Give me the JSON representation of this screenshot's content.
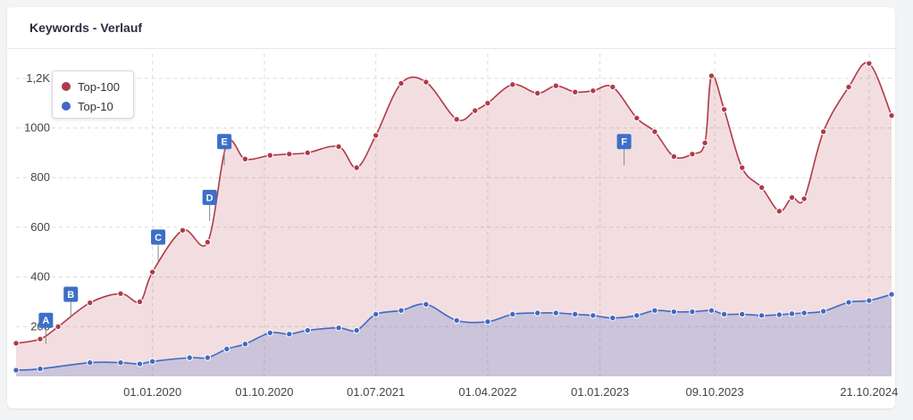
{
  "header": {
    "title": "Keywords - Verlauf"
  },
  "legend": {
    "items": [
      {
        "label": "Top-100",
        "color": "#b03a48"
      },
      {
        "label": "Top-10",
        "color": "#4169c4"
      }
    ]
  },
  "colors": {
    "top100": "#b03a48",
    "top10": "#4169c4",
    "flag": "#3c6fc7"
  },
  "chart_data": {
    "type": "area",
    "title": "Keywords - Verlauf",
    "xlabel": "",
    "ylabel": "",
    "x_ticks": [
      "01.01.2020",
      "01.10.2020",
      "01.07.2021",
      "01.04.2022",
      "01.01.2023",
      "09.10.2023",
      "21.10.2024"
    ],
    "y_ticks": [
      "200",
      "400",
      "600",
      "800",
      "1000",
      "1,2K"
    ],
    "ylim": [
      0,
      1300
    ],
    "grid": true,
    "legend_position": "top-left",
    "x_start": "2019-02-01",
    "x_end": "2024-12-15",
    "series": [
      {
        "name": "Top-100",
        "points": [
          [
            "2019-02-01",
            133
          ],
          [
            "2019-04-01",
            150
          ],
          [
            "2019-05-15",
            200
          ],
          [
            "2019-08-01",
            296
          ],
          [
            "2019-10-15",
            333
          ],
          [
            "2019-12-01",
            300
          ],
          [
            "2020-01-01",
            420
          ],
          [
            "2020-03-15",
            588
          ],
          [
            "2020-05-15",
            540
          ],
          [
            "2020-07-01",
            935
          ],
          [
            "2020-08-15",
            875
          ],
          [
            "2020-10-15",
            890
          ],
          [
            "2020-12-01",
            895
          ],
          [
            "2021-01-15",
            900
          ],
          [
            "2021-04-01",
            925
          ],
          [
            "2021-05-15",
            840
          ],
          [
            "2021-07-01",
            970
          ],
          [
            "2021-09-01",
            1180
          ],
          [
            "2021-11-01",
            1185
          ],
          [
            "2022-01-15",
            1035
          ],
          [
            "2022-03-01",
            1070
          ],
          [
            "2022-04-01",
            1100
          ],
          [
            "2022-06-01",
            1175
          ],
          [
            "2022-08-01",
            1140
          ],
          [
            "2022-09-15",
            1170
          ],
          [
            "2022-11-01",
            1145
          ],
          [
            "2022-12-15",
            1150
          ],
          [
            "2023-02-01",
            1165
          ],
          [
            "2023-04-01",
            1040
          ],
          [
            "2023-05-15",
            985
          ],
          [
            "2023-07-01",
            885
          ],
          [
            "2023-08-15",
            895
          ],
          [
            "2023-09-15",
            940
          ],
          [
            "2023-10-01",
            1210
          ],
          [
            "2023-11-01",
            1075
          ],
          [
            "2023-12-15",
            840
          ],
          [
            "2024-02-01",
            760
          ],
          [
            "2024-03-15",
            665
          ],
          [
            "2024-04-15",
            720
          ],
          [
            "2024-05-15",
            715
          ],
          [
            "2024-07-01",
            985
          ],
          [
            "2024-09-01",
            1165
          ],
          [
            "2024-10-21",
            1260
          ],
          [
            "2024-12-15",
            1050
          ]
        ]
      },
      {
        "name": "Top-10",
        "points": [
          [
            "2019-02-01",
            25
          ],
          [
            "2019-04-01",
            30
          ],
          [
            "2019-08-01",
            55
          ],
          [
            "2019-10-15",
            55
          ],
          [
            "2019-12-01",
            50
          ],
          [
            "2020-01-01",
            60
          ],
          [
            "2020-04-01",
            75
          ],
          [
            "2020-05-15",
            75
          ],
          [
            "2020-07-01",
            110
          ],
          [
            "2020-08-15",
            130
          ],
          [
            "2020-10-15",
            175
          ],
          [
            "2020-12-01",
            170
          ],
          [
            "2021-01-15",
            185
          ],
          [
            "2021-04-01",
            195
          ],
          [
            "2021-05-15",
            185
          ],
          [
            "2021-07-01",
            250
          ],
          [
            "2021-09-01",
            265
          ],
          [
            "2021-11-01",
            290
          ],
          [
            "2022-01-15",
            225
          ],
          [
            "2022-04-01",
            220
          ],
          [
            "2022-06-01",
            250
          ],
          [
            "2022-08-01",
            255
          ],
          [
            "2022-09-15",
            255
          ],
          [
            "2022-11-01",
            250
          ],
          [
            "2022-12-15",
            245
          ],
          [
            "2023-02-01",
            235
          ],
          [
            "2023-04-01",
            245
          ],
          [
            "2023-05-15",
            265
          ],
          [
            "2023-07-01",
            260
          ],
          [
            "2023-08-15",
            260
          ],
          [
            "2023-10-01",
            265
          ],
          [
            "2023-11-01",
            250
          ],
          [
            "2023-12-15",
            250
          ],
          [
            "2024-02-01",
            245
          ],
          [
            "2024-03-15",
            248
          ],
          [
            "2024-04-15",
            252
          ],
          [
            "2024-05-15",
            255
          ],
          [
            "2024-07-01",
            262
          ],
          [
            "2024-09-01",
            298
          ],
          [
            "2024-10-21",
            305
          ],
          [
            "2024-12-15",
            330
          ]
        ]
      }
    ],
    "annotations": [
      {
        "label": "A",
        "date": "2019-04-15",
        "value": 195
      },
      {
        "label": "B",
        "date": "2019-06-15",
        "value": 300
      },
      {
        "label": "C",
        "date": "2020-01-15",
        "value": 530
      },
      {
        "label": "D",
        "date": "2020-05-20",
        "value": 690
      },
      {
        "label": "E",
        "date": "2020-06-25",
        "value": 915
      },
      {
        "label": "F",
        "date": "2023-03-01",
        "value": 915
      }
    ]
  }
}
